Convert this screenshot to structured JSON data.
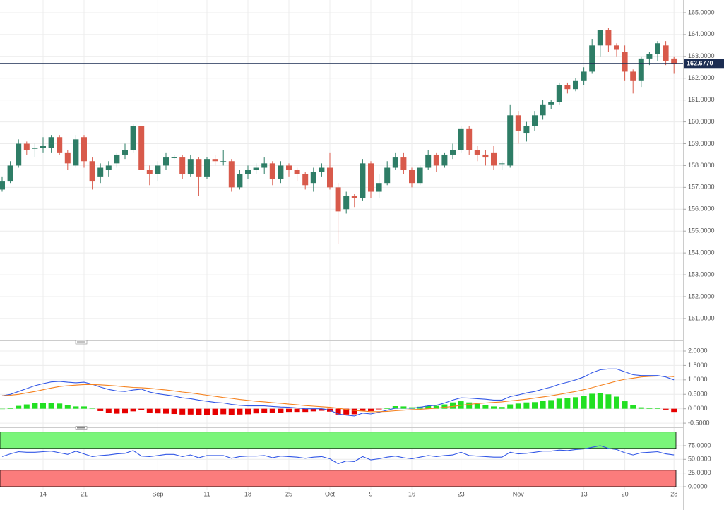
{
  "chart_data": [
    {
      "type": "candlestick",
      "categories": [
        null,
        null,
        null,
        null,
        null,
        "14",
        null,
        null,
        null,
        null,
        "21",
        null,
        null,
        null,
        null,
        null,
        null,
        null,
        null,
        "Sep",
        null,
        null,
        null,
        null,
        null,
        "11",
        null,
        null,
        null,
        null,
        "18",
        null,
        null,
        null,
        null,
        "25",
        null,
        null,
        null,
        null,
        "Oct",
        null,
        null,
        null,
        null,
        "9",
        null,
        null,
        null,
        null,
        "16",
        null,
        null,
        null,
        null,
        null,
        "23",
        null,
        null,
        null,
        null,
        null,
        null,
        "Nov",
        null,
        null,
        null,
        null,
        null,
        null,
        null,
        "13",
        null,
        null,
        null,
        null,
        "20",
        null,
        null,
        null,
        null,
        null,
        "28"
      ],
      "open": [
        156.9,
        157.3,
        158.0,
        159.0,
        158.8,
        158.8,
        158.8,
        159.3,
        158.6,
        158.0,
        159.3,
        158.2,
        157.5,
        157.8,
        158.1,
        158.5,
        158.7,
        159.8,
        157.8,
        157.6,
        158.0,
        158.4,
        158.4,
        157.6,
        158.3,
        157.5,
        158.3,
        158.2,
        158.2,
        157.0,
        157.6,
        157.8,
        157.9,
        158.1,
        157.4,
        158.0,
        157.8,
        157.6,
        157.2,
        157.7,
        157.9,
        157.0,
        156.0,
        156.6,
        156.5,
        158.1,
        156.8,
        157.2,
        157.9,
        158.4,
        157.8,
        157.2,
        157.9,
        158.5,
        158.0,
        158.5,
        158.7,
        159.7,
        158.7,
        158.5,
        158.6,
        158.1,
        158.0,
        160.3,
        159.5,
        159.8,
        160.3,
        160.8,
        160.9,
        161.7,
        161.5,
        161.9,
        162.3,
        163.5,
        164.2,
        163.5,
        163.2,
        162.3,
        161.9,
        162.9,
        163.1,
        163.5,
        162.9
      ],
      "high": [
        157.5,
        158.2,
        159.2,
        159.1,
        159.0,
        159.3,
        159.4,
        159.4,
        158.7,
        159.4,
        159.4,
        158.4,
        158.1,
        158.2,
        158.6,
        159.0,
        159.9,
        159.8,
        158.0,
        158.2,
        158.6,
        158.5,
        158.5,
        158.5,
        158.4,
        158.4,
        158.5,
        158.7,
        158.3,
        157.8,
        158.0,
        158.1,
        158.4,
        158.2,
        158.2,
        158.1,
        157.9,
        157.7,
        157.9,
        158.1,
        158.6,
        157.2,
        156.8,
        156.7,
        158.3,
        158.2,
        157.6,
        158.2,
        158.6,
        158.6,
        157.9,
        158.0,
        158.7,
        158.6,
        158.6,
        159.0,
        159.8,
        159.8,
        158.9,
        158.7,
        158.9,
        158.2,
        160.8,
        160.5,
        160.0,
        160.5,
        161.0,
        161.0,
        161.8,
        161.8,
        162.0,
        162.5,
        163.8,
        164.2,
        164.3,
        163.6,
        163.5,
        162.4,
        163.0,
        163.2,
        163.7,
        163.7,
        163.0
      ],
      "low": [
        156.8,
        157.2,
        157.9,
        158.5,
        158.4,
        158.6,
        158.6,
        158.5,
        157.8,
        157.9,
        157.9,
        156.9,
        157.2,
        157.5,
        157.9,
        158.3,
        158.6,
        157.8,
        157.1,
        157.3,
        157.8,
        158.3,
        157.4,
        157.5,
        156.6,
        157.4,
        158.0,
        158.0,
        156.8,
        156.9,
        157.4,
        157.6,
        157.6,
        157.1,
        157.2,
        157.5,
        157.3,
        156.9,
        156.8,
        157.5,
        156.9,
        154.4,
        155.8,
        156.1,
        156.4,
        156.5,
        156.5,
        157.1,
        157.8,
        157.6,
        157.0,
        157.1,
        157.8,
        157.7,
        157.9,
        158.3,
        158.6,
        158.5,
        158.2,
        158.0,
        157.8,
        157.8,
        157.9,
        159.0,
        159.1,
        159.6,
        160.1,
        160.6,
        160.8,
        161.3,
        161.4,
        161.7,
        162.2,
        163.0,
        163.2,
        163.0,
        161.9,
        161.3,
        161.6,
        162.6,
        162.8,
        162.6,
        162.2
      ],
      "close": [
        157.3,
        158.0,
        159.0,
        158.7,
        158.8,
        158.9,
        159.3,
        158.6,
        158.1,
        159.2,
        158.2,
        157.3,
        157.9,
        158.0,
        158.5,
        158.7,
        159.8,
        157.8,
        157.6,
        158.0,
        158.4,
        158.4,
        157.6,
        158.3,
        157.5,
        158.3,
        158.2,
        158.2,
        157.0,
        157.6,
        157.8,
        157.9,
        158.1,
        157.4,
        158.0,
        157.8,
        157.6,
        157.1,
        157.7,
        157.9,
        157.0,
        155.9,
        156.6,
        156.5,
        158.1,
        156.8,
        157.2,
        157.9,
        158.4,
        157.8,
        157.2,
        157.9,
        158.5,
        158.0,
        158.5,
        158.7,
        159.7,
        158.7,
        158.5,
        158.4,
        158.0,
        158.1,
        160.3,
        159.6,
        159.8,
        160.3,
        160.8,
        160.9,
        161.7,
        161.5,
        161.9,
        162.3,
        163.5,
        164.2,
        163.5,
        163.3,
        162.3,
        161.9,
        162.9,
        163.1,
        163.6,
        162.8,
        162.68
      ],
      "up_color": "#2e7d66",
      "down_color": "#d85a4b",
      "ylim": [
        150.06,
        165.58
      ],
      "yticks": [
        {
          "value": 151,
          "label": "151.0000"
        },
        {
          "value": 152,
          "label": "152.0000"
        },
        {
          "value": 153,
          "label": "153.0000"
        },
        {
          "value": 154,
          "label": "154.0000"
        },
        {
          "value": 155,
          "label": "155.0000"
        },
        {
          "value": 156,
          "label": "156.0000"
        },
        {
          "value": 157,
          "label": "157.0000"
        },
        {
          "value": 158,
          "label": "158.0000"
        },
        {
          "value": 159,
          "label": "159.0000"
        },
        {
          "value": 160,
          "label": "160.0000"
        },
        {
          "value": 161,
          "label": "161.0000"
        },
        {
          "value": 162,
          "label": "162.0000"
        },
        {
          "value": 163,
          "label": "163.0000"
        },
        {
          "value": 164,
          "label": "164.0000"
        },
        {
          "value": 165,
          "label": "165.0000"
        }
      ],
      "grid": true,
      "last_price": {
        "value": 162.677,
        "label": "162.6770",
        "color": "#1c2d52"
      }
    },
    {
      "type": "macd",
      "series": [
        {
          "color": "#3257e6",
          "values": [
            0.45,
            0.5,
            0.6,
            0.7,
            0.8,
            0.87,
            0.93,
            0.95,
            0.92,
            0.9,
            0.92,
            0.85,
            0.75,
            0.67,
            0.62,
            0.6,
            0.65,
            0.68,
            0.58,
            0.52,
            0.48,
            0.44,
            0.38,
            0.35,
            0.3,
            0.26,
            0.22,
            0.2,
            0.15,
            0.12,
            0.1,
            0.1,
            0.1,
            0.08,
            0.06,
            0.05,
            0.03,
            0.0,
            0.0,
            0.0,
            -0.05,
            -0.18,
            -0.22,
            -0.25,
            -0.15,
            -0.18,
            -0.12,
            -0.05,
            0.02,
            0.03,
            0.02,
            0.05,
            0.1,
            0.12,
            0.2,
            0.3,
            0.38,
            0.37,
            0.35,
            0.33,
            0.3,
            0.3,
            0.42,
            0.48,
            0.55,
            0.6,
            0.68,
            0.75,
            0.85,
            0.92,
            1.0,
            1.1,
            1.25,
            1.35,
            1.38,
            1.38,
            1.28,
            1.18,
            1.15,
            1.15,
            1.15,
            1.1,
            1.0
          ]
        },
        {
          "color": "#f5821f",
          "values": [
            0.45,
            0.47,
            0.5,
            0.55,
            0.6,
            0.66,
            0.72,
            0.77,
            0.8,
            0.82,
            0.84,
            0.84,
            0.83,
            0.81,
            0.79,
            0.76,
            0.74,
            0.73,
            0.71,
            0.68,
            0.65,
            0.62,
            0.58,
            0.55,
            0.51,
            0.47,
            0.43,
            0.39,
            0.36,
            0.32,
            0.29,
            0.26,
            0.24,
            0.21,
            0.19,
            0.16,
            0.14,
            0.11,
            0.09,
            0.07,
            0.05,
            0.02,
            -0.02,
            -0.06,
            -0.08,
            -0.1,
            -0.1,
            -0.09,
            -0.07,
            -0.05,
            -0.03,
            -0.02,
            0.0,
            0.02,
            0.05,
            0.08,
            0.12,
            0.15,
            0.18,
            0.2,
            0.22,
            0.24,
            0.27,
            0.3,
            0.33,
            0.37,
            0.41,
            0.45,
            0.5,
            0.55,
            0.6,
            0.66,
            0.73,
            0.81,
            0.88,
            0.96,
            1.02,
            1.06,
            1.1,
            1.12,
            1.13,
            1.13,
            1.11
          ]
        }
      ],
      "histogram": {
        "up_color": "#22e022",
        "down_color": "#e60000",
        "values": [
          0,
          0.03,
          0.1,
          0.15,
          0.2,
          0.21,
          0.21,
          0.18,
          0.12,
          0.08,
          0.08,
          0.01,
          -0.08,
          -0.14,
          -0.17,
          -0.16,
          -0.09,
          -0.05,
          -0.13,
          -0.16,
          -0.17,
          -0.18,
          -0.2,
          -0.2,
          -0.21,
          -0.21,
          -0.21,
          -0.19,
          -0.21,
          -0.2,
          -0.19,
          -0.16,
          -0.14,
          -0.13,
          -0.13,
          -0.11,
          -0.11,
          -0.11,
          -0.09,
          -0.07,
          -0.1,
          -0.2,
          -0.2,
          -0.19,
          -0.07,
          -0.08,
          -0.02,
          0.04,
          0.09,
          0.08,
          0.05,
          0.07,
          0.1,
          0.1,
          0.15,
          0.22,
          0.26,
          0.22,
          0.17,
          0.13,
          0.08,
          0.06,
          0.15,
          0.18,
          0.22,
          0.23,
          0.27,
          0.3,
          0.35,
          0.37,
          0.4,
          0.44,
          0.52,
          0.54,
          0.5,
          0.42,
          0.26,
          0.12,
          0.05,
          0.03,
          0.02,
          -0.03,
          -0.11
        ]
      },
      "ylim": [
        -0.62,
        2.22
      ],
      "yticks": [
        {
          "value": -0.5,
          "label": "-0.5000"
        },
        {
          "value": 0,
          "label": "0.0000"
        },
        {
          "value": 0.5,
          "label": "0.5000"
        },
        {
          "value": 1,
          "label": "1.0000"
        },
        {
          "value": 1.5,
          "label": "1.5000"
        },
        {
          "value": 2,
          "label": "2.0000"
        }
      ]
    },
    {
      "type": "line",
      "series": [
        {
          "color": "#3257e6",
          "values": [
            55,
            60,
            64,
            63,
            63,
            64,
            65,
            62,
            59,
            65,
            60,
            55,
            57,
            58,
            60,
            61,
            66,
            56,
            55,
            57,
            59,
            59,
            55,
            58,
            53,
            57,
            57,
            57,
            52,
            55,
            56,
            56,
            57,
            53,
            56,
            55,
            54,
            52,
            54,
            55,
            51,
            42,
            47,
            46,
            55,
            49,
            51,
            54,
            56,
            53,
            51,
            54,
            57,
            55,
            57,
            58,
            63,
            57,
            56,
            55,
            54,
            54,
            63,
            60,
            61,
            63,
            65,
            65,
            67,
            66,
            68,
            69,
            72,
            75,
            70,
            68,
            62,
            58,
            62,
            63,
            64,
            60,
            58
          ]
        }
      ],
      "bands": [
        {
          "from": 70,
          "to": 100,
          "color": "#7af57a"
        },
        {
          "from": 0,
          "to": 30,
          "color": "#fb7c7c"
        }
      ],
      "ylim": [
        -6.5,
        104.7
      ],
      "yticks": [
        {
          "value": 0,
          "label": "0.0000"
        },
        {
          "value": 25,
          "label": "25.0000"
        },
        {
          "value": 50,
          "label": "50.0000"
        },
        {
          "value": 75,
          "label": "75.0000"
        }
      ]
    }
  ]
}
